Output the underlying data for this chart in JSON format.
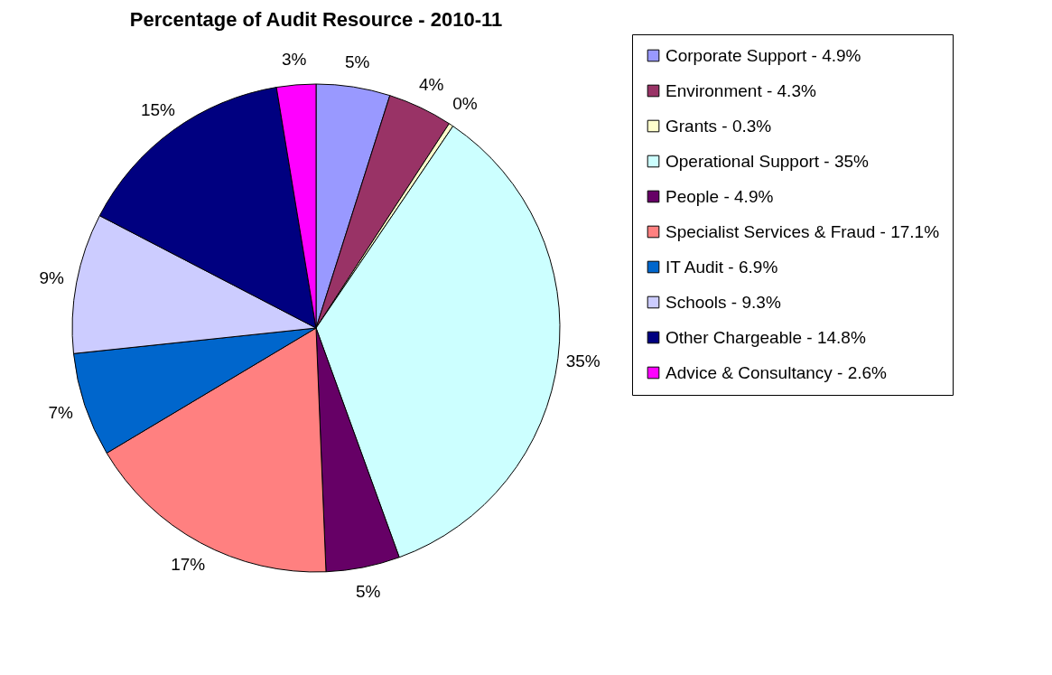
{
  "chart_data": {
    "type": "pie",
    "title": "Percentage of Audit Resource - 2010-11",
    "categories": [
      "Corporate Support - 4.9%",
      "Environment - 4.3%",
      "Grants - 0.3%",
      "Operational Support - 35%",
      "People - 4.9%",
      "Specialist Services & Fraud - 17.1%",
      "IT Audit - 6.9%",
      "Schools - 9.3%",
      "Other Chargeable - 14.8%",
      "Advice & Consultancy - 2.6%"
    ],
    "values": [
      4.9,
      4.3,
      0.3,
      35,
      4.9,
      17.1,
      6.9,
      9.3,
      14.8,
      2.6
    ],
    "value_labels": [
      "5%",
      "4%",
      "0%",
      "35%",
      "5%",
      "17%",
      "7%",
      "9%",
      "15%",
      "3%"
    ],
    "colors": [
      "#9999ff",
      "#993366",
      "#ffffcc",
      "#ccffff",
      "#660066",
      "#ff8080",
      "#0066cc",
      "#ccccff",
      "#000080",
      "#ff00ff"
    ],
    "legend": "right"
  }
}
